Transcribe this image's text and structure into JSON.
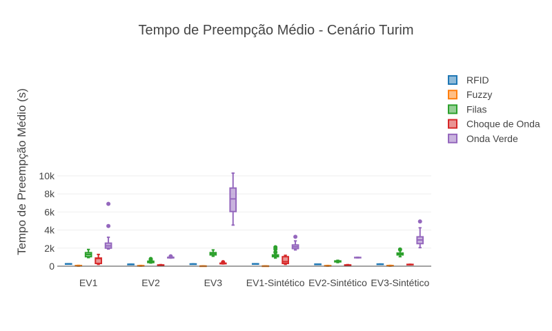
{
  "chart_data": {
    "type": "box",
    "title": "Tempo de Preempção Médio - Cenário Turim",
    "xlabel": "",
    "ylabel": "Tempo de Preempção Médio (s)",
    "ylim": [
      0,
      11000
    ],
    "yticks": [
      0,
      2000,
      4000,
      6000,
      8000,
      10000
    ],
    "ytick_labels": [
      "0",
      "2k",
      "4k",
      "6k",
      "8k",
      "10k"
    ],
    "grid": true,
    "legend_position": "right",
    "categories": [
      "EV1",
      "EV2",
      "EV3",
      "EV1-Sintético",
      "EV2-Sintético",
      "EV3-Sintético"
    ],
    "series": [
      {
        "name": "RFID",
        "color": "#1f77b4",
        "boxes": [
          {
            "min": 250,
            "q1": 255,
            "median": 260,
            "q3": 265,
            "max": 270,
            "outliers": []
          },
          {
            "min": 200,
            "q1": 205,
            "median": 210,
            "q3": 215,
            "max": 220,
            "outliers": []
          },
          {
            "min": 230,
            "q1": 235,
            "median": 240,
            "q3": 245,
            "max": 250,
            "outliers": []
          },
          {
            "min": 250,
            "q1": 255,
            "median": 260,
            "q3": 265,
            "max": 270,
            "outliers": []
          },
          {
            "min": 210,
            "q1": 215,
            "median": 220,
            "q3": 225,
            "max": 230,
            "outliers": []
          },
          {
            "min": 220,
            "q1": 225,
            "median": 230,
            "q3": 235,
            "max": 240,
            "outliers": []
          }
        ]
      },
      {
        "name": "Fuzzy",
        "color": "#ff7f0e",
        "boxes": [
          {
            "min": 10,
            "q1": 30,
            "median": 50,
            "q3": 70,
            "max": 90,
            "outliers": []
          },
          {
            "min": 10,
            "q1": 25,
            "median": 40,
            "q3": 60,
            "max": 80,
            "outliers": []
          },
          {
            "min": 5,
            "q1": 10,
            "median": 15,
            "q3": 20,
            "max": 25,
            "outliers": []
          },
          {
            "min": 5,
            "q1": 10,
            "median": 15,
            "q3": 20,
            "max": 25,
            "outliers": []
          },
          {
            "min": 10,
            "q1": 25,
            "median": 40,
            "q3": 60,
            "max": 80,
            "outliers": []
          },
          {
            "min": 10,
            "q1": 30,
            "median": 50,
            "q3": 70,
            "max": 90,
            "outliers": []
          }
        ]
      },
      {
        "name": "Filas",
        "color": "#2ca02c",
        "boxes": [
          {
            "min": 950,
            "q1": 1050,
            "median": 1300,
            "q3": 1500,
            "max": 1850,
            "outliers": []
          },
          {
            "min": 350,
            "q1": 400,
            "median": 480,
            "q3": 550,
            "max": 650,
            "outliers": [
              700,
              800
            ]
          },
          {
            "min": 1100,
            "q1": 1250,
            "median": 1400,
            "q3": 1500,
            "max": 1800,
            "outliers": []
          },
          {
            "min": 900,
            "q1": 1050,
            "median": 1150,
            "q3": 1250,
            "max": 1400,
            "outliers": [
              1550,
              1900,
              2100
            ]
          },
          {
            "min": 400,
            "q1": 480,
            "median": 530,
            "q3": 580,
            "max": 650,
            "outliers": []
          },
          {
            "min": 1050,
            "q1": 1250,
            "median": 1350,
            "q3": 1450,
            "max": 1700,
            "outliers": [
              1850
            ]
          }
        ]
      },
      {
        "name": "Choque de Onda",
        "color": "#d62728",
        "boxes": [
          {
            "min": 200,
            "q1": 300,
            "median": 850,
            "q3": 900,
            "max": 1300,
            "outliers": []
          },
          {
            "min": 60,
            "q1": 80,
            "median": 110,
            "q3": 140,
            "max": 170,
            "outliers": []
          },
          {
            "min": 250,
            "q1": 270,
            "median": 300,
            "q3": 330,
            "max": 350,
            "outliers": [
              450
            ]
          },
          {
            "min": 200,
            "q1": 300,
            "median": 500,
            "q3": 1050,
            "max": 1200,
            "outliers": []
          },
          {
            "min": 60,
            "q1": 80,
            "median": 110,
            "q3": 140,
            "max": 170,
            "outliers": []
          },
          {
            "min": 170,
            "q1": 180,
            "median": 190,
            "q3": 200,
            "max": 210,
            "outliers": []
          }
        ]
      },
      {
        "name": "Onda Verde",
        "color": "#9467bd",
        "boxes": [
          {
            "min": 1900,
            "q1": 2000,
            "median": 2250,
            "q3": 2550,
            "max": 3200,
            "outliers": [
              4450,
              6900
            ]
          },
          {
            "min": 900,
            "q1": 920,
            "median": 950,
            "q3": 980,
            "max": 1000,
            "outliers": [
              1050,
              1100
            ]
          },
          {
            "min": 4550,
            "q1": 6050,
            "median": 7450,
            "q3": 8650,
            "max": 10300,
            "outliers": []
          },
          {
            "min": 1800,
            "q1": 1950,
            "median": 2150,
            "q3": 2350,
            "max": 2800,
            "outliers": [
              3250
            ]
          },
          {
            "min": 920,
            "q1": 930,
            "median": 950,
            "q3": 970,
            "max": 980,
            "outliers": []
          },
          {
            "min": 2050,
            "q1": 2500,
            "median": 2900,
            "q3": 3250,
            "max": 4250,
            "outliers": [
              4950
            ]
          }
        ]
      }
    ]
  }
}
